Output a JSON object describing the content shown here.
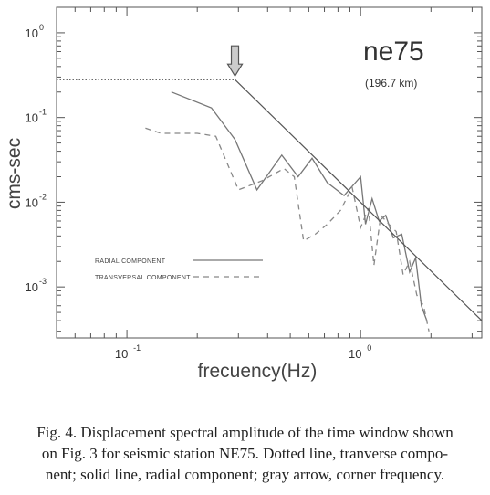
{
  "chart_data": {
    "type": "line",
    "xscale": "log",
    "yscale": "log",
    "xlim": [
      0.05,
      3.3
    ],
    "ylim": [
      0.00025,
      2
    ],
    "xlabel": "frecuency(Hz)",
    "ylabel": "cms-sec",
    "x_ticks": [
      {
        "value": 0.1,
        "label": "10",
        "exp": "-1"
      },
      {
        "value": 1,
        "label": "10",
        "exp": "0"
      }
    ],
    "y_ticks": [
      {
        "value": 1,
        "label": "10",
        "exp": "0"
      },
      {
        "value": 0.1,
        "label": "10",
        "exp": "-1"
      },
      {
        "value": 0.01,
        "label": "10",
        "exp": "-2"
      },
      {
        "value": 0.001,
        "label": "10",
        "exp": "-3"
      }
    ],
    "station": "ne75",
    "distance": "(196.7 km)",
    "series": [
      {
        "name": "RADIAL COMPONENT",
        "style": "solid",
        "x": [
          0.155,
          0.23,
          0.29,
          0.36,
          0.46,
          0.54,
          0.62,
          0.72,
          0.85,
          1.0,
          1.05,
          1.12,
          1.2,
          1.28,
          1.38,
          1.5,
          1.62,
          1.72,
          1.82,
          1.92
        ],
        "y": [
          0.2,
          0.13,
          0.055,
          0.014,
          0.036,
          0.02,
          0.033,
          0.017,
          0.012,
          0.02,
          0.0055,
          0.011,
          0.006,
          0.007,
          0.0038,
          0.0042,
          0.0015,
          0.0022,
          0.0006,
          0.0004
        ]
      },
      {
        "name": "TRANSVERSAL COMPONENT",
        "style": "dashed",
        "x": [
          0.12,
          0.14,
          0.2,
          0.24,
          0.3,
          0.38,
          0.47,
          0.52,
          0.57,
          0.64,
          0.72,
          0.82,
          0.92,
          1.0,
          1.08,
          1.14,
          1.22,
          1.32,
          1.42,
          1.52,
          1.62,
          1.74,
          1.86,
          1.96
        ],
        "y": [
          0.075,
          0.065,
          0.065,
          0.06,
          0.014,
          0.018,
          0.025,
          0.02,
          0.0035,
          0.0042,
          0.0055,
          0.008,
          0.015,
          0.005,
          0.0085,
          0.0018,
          0.007,
          0.0055,
          0.0045,
          0.0014,
          0.002,
          0.0008,
          0.0006,
          0.0003
        ]
      }
    ],
    "model": {
      "style": "dotted-solid",
      "plateau_y": 0.28,
      "corner_x": 0.29,
      "end": {
        "x": 3.3,
        "y": 0.0004
      }
    },
    "corner_arrow_x": 0.29,
    "legend": "center-left"
  },
  "caption": {
    "lines": [
      "Fig. 4. Displacement spectral amplitude of the time window shown",
      "on Fig. 3 for seismic station NE75. Dotted line, tranverse compo-",
      "nent; solid line, radial component; gray arrow, corner frequency."
    ]
  },
  "colors": {
    "axes": "#555555",
    "radial": "#777777",
    "transversal": "#888888",
    "model": "#555555",
    "arrow_fill": "#cccccc"
  }
}
